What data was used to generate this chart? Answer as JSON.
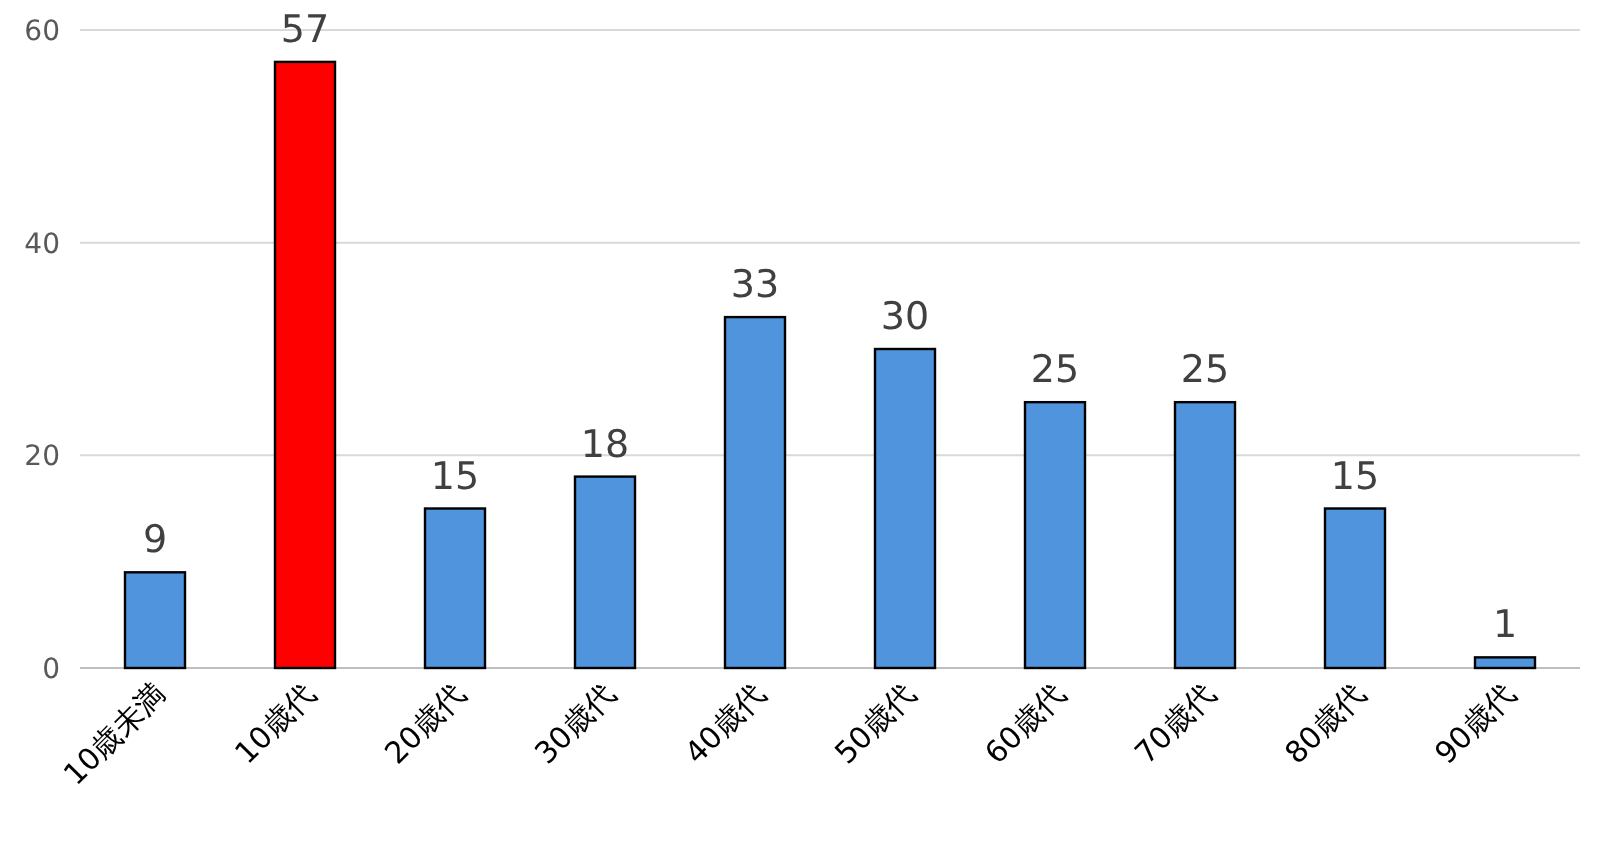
{
  "chart_data": {
    "type": "bar",
    "categories": [
      "10歳未満",
      "10歳代",
      "20歳代",
      "30歳代",
      "40歳代",
      "50歳代",
      "60歳代",
      "70歳代",
      "80歳代",
      "90歳代"
    ],
    "values": [
      9,
      57,
      15,
      18,
      33,
      30,
      25,
      25,
      15,
      1
    ],
    "colors": [
      "#4f94dc",
      "#ff0000",
      "#4f94dc",
      "#4f94dc",
      "#4f94dc",
      "#4f94dc",
      "#4f94dc",
      "#4f94dc",
      "#4f94dc",
      "#4f94dc"
    ],
    "ylim": [
      0,
      60
    ],
    "yticks": [
      0,
      20,
      40,
      60
    ],
    "grid": "y",
    "data_labels": true
  }
}
